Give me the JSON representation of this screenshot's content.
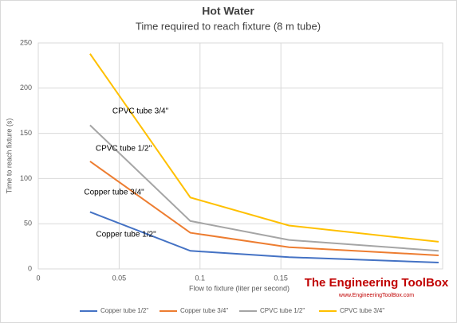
{
  "chart_data": {
    "type": "line",
    "title": "Hot Water",
    "subtitle": "Time required to reach fixture (8 m tube)",
    "x_label": "Flow to fixture (liter per second)",
    "y_label": "Time to reach fixture (s)",
    "x": [
      0.032,
      0.094,
      0.155,
      0.2475
    ],
    "series": [
      {
        "name": "Copper tube 1/2\"",
        "color": "#4472c4",
        "values": [
          63,
          20,
          13,
          7
        ]
      },
      {
        "name": "Copper tube 3/4\"",
        "color": "#ed7d31",
        "values": [
          119,
          40,
          24,
          15
        ]
      },
      {
        "name": "CPVC tube 1/2\"",
        "color": "#a5a5a5",
        "values": [
          159,
          53,
          32,
          20
        ]
      },
      {
        "name": "CPVC tube 3/4\"",
        "color": "#ffc000",
        "values": [
          238,
          79,
          48,
          30
        ]
      }
    ],
    "annotations": [
      "Copper tube 1/2\"",
      "Copper tube 3/4\"",
      "CPVC tube 1/2\"",
      "CPVC tube 3/4\""
    ],
    "xlim": [
      0,
      0.25
    ],
    "xticks": [
      0,
      0.05,
      0.1,
      0.15
    ],
    "ylim": [
      0,
      250
    ],
    "yticks": [
      0,
      50,
      100,
      150,
      200,
      250
    ],
    "grid": true,
    "legend": "bottom"
  },
  "logo": {
    "title": "The Engineering ToolBox",
    "url": "www.EngineeringToolBox.com"
  }
}
